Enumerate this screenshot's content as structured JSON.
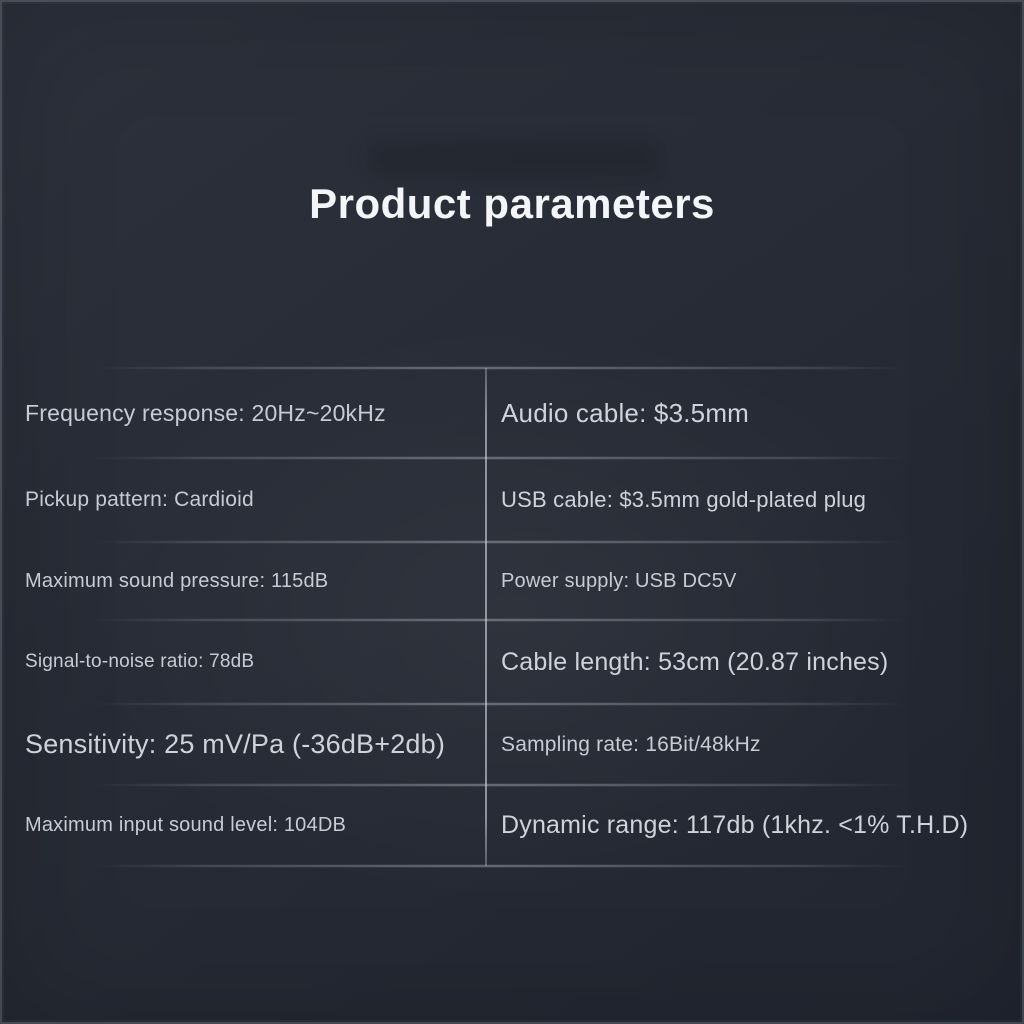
{
  "title": "Product parameters",
  "table": {
    "rows": [
      {
        "left": "Frequency response: 20Hz~20kHz",
        "right": "Audio cable: $3.5mm"
      },
      {
        "left": "Pickup pattern: Cardioid",
        "right": "USB cable: $3.5mm gold-plated plug"
      },
      {
        "left": "Maximum sound pressure: 115dB",
        "right": "Power supply: USB DC5V"
      },
      {
        "left": "Signal-to-noise ratio: 78dB",
        "right": "Cable length: 53cm (20.87 inches)"
      },
      {
        "left": "Sensitivity: 25 mV/Pa (-36dB+2db)",
        "right": "Sampling rate: 16Bit/48kHz"
      },
      {
        "left": "Maximum input sound level: 104DB",
        "right": "Dynamic range: 117db (1khz. <1% T.H.D)"
      }
    ]
  },
  "colors": {
    "background_top": "#2d313c",
    "background_bottom": "#222631",
    "text": "#c6cbd4",
    "title_text": "#f3f5f8",
    "divider": "#d0d8e4"
  }
}
